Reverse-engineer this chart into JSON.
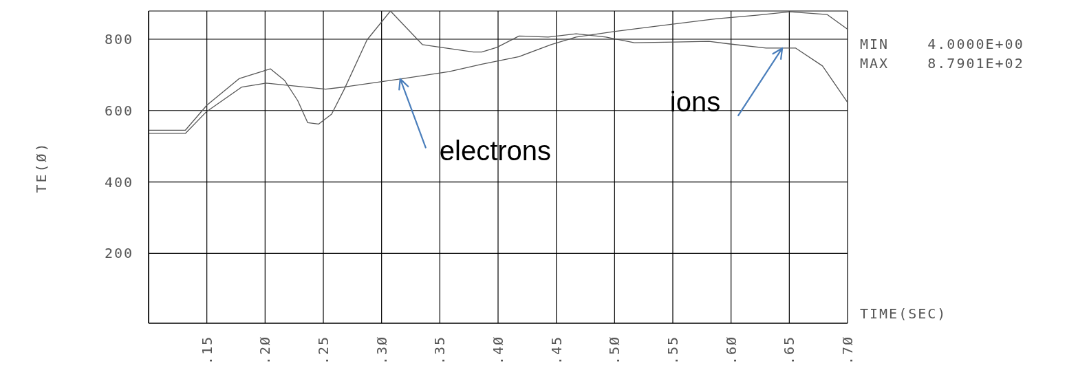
{
  "chart_data": {
    "type": "line",
    "xlabel": "TIME(SEC)",
    "ylabel": "TE(Ø)",
    "xlim": [
      0.1,
      0.7
    ],
    "xticks": [
      {
        "value": 0.15,
        "label": ".15"
      },
      {
        "value": 0.2,
        "label": ".2Ø"
      },
      {
        "value": 0.25,
        "label": ".25"
      },
      {
        "value": 0.3,
        "label": ".3Ø"
      },
      {
        "value": 0.35,
        "label": ".35"
      },
      {
        "value": 0.4,
        "label": ".4Ø"
      },
      {
        "value": 0.45,
        "label": ".45"
      },
      {
        "value": 0.5,
        "label": ".5Ø"
      },
      {
        "value": 0.55,
        "label": ".55"
      },
      {
        "value": 0.6,
        "label": ".6Ø"
      },
      {
        "value": 0.65,
        "label": ".65"
      },
      {
        "value": 0.7,
        "label": ".7Ø"
      }
    ],
    "ylim": [
      4,
      879
    ],
    "yticks": [
      200,
      400,
      600,
      800
    ],
    "grid": true,
    "legend": false,
    "marker": "none",
    "line_style": "solid",
    "series": [
      {
        "color": "#555555",
        "x": [
          0.1,
          0.1316,
          0.15,
          0.178,
          0.2045,
          0.2166,
          0.228,
          0.2366,
          0.2459,
          0.2571,
          0.268,
          0.2875,
          0.3076,
          0.335,
          0.347,
          0.3788,
          0.386,
          0.399,
          0.418,
          0.443,
          0.467,
          0.4925,
          0.517,
          0.552,
          0.581,
          0.598,
          0.63,
          0.6555,
          0.6785,
          0.7
        ],
        "values": [
          545,
          545,
          615,
          690,
          717,
          685,
          628,
          566,
          562,
          590,
          660,
          798,
          879,
          785,
          779,
          764,
          764,
          777,
          809,
          806,
          815,
          806,
          790,
          792,
          794,
          787,
          775,
          775,
          725,
          623
        ]
      },
      {
        "color": "#555555",
        "x": [
          0.1,
          0.1,
          0.1316,
          0.1494,
          0.18,
          0.2009,
          0.252,
          0.268,
          0.317,
          0.358,
          0.386,
          0.418,
          0.4455,
          0.467,
          0.5006,
          0.5345,
          0.587,
          0.622,
          0.6505,
          0.6826,
          0.7
        ],
        "values": [
          4,
          536,
          536,
          596,
          666,
          677,
          660,
          666,
          689,
          709,
          730,
          751,
          785,
          806,
          822,
          836,
          857,
          867,
          877,
          869,
          828
        ]
      }
    ],
    "annotations": [
      {
        "text": "electrons",
        "x": 0.316,
        "y": 689
      },
      {
        "text": "ions",
        "x": 0.644,
        "y": 775
      },
      "MIN    4.0000E+00",
      "MAX    8.7901E+02"
    ]
  }
}
